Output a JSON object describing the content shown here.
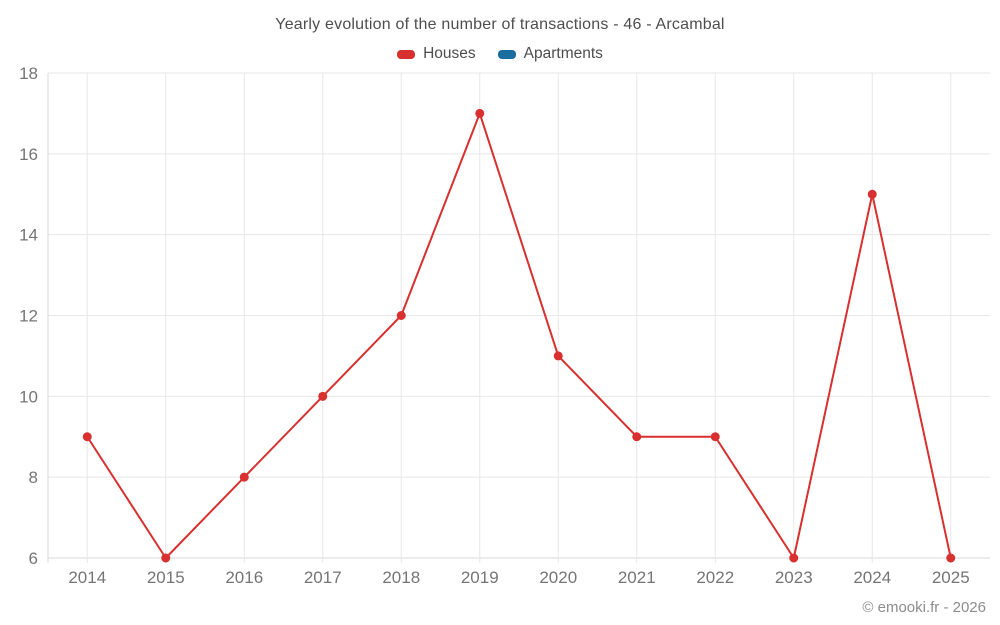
{
  "title": "Yearly evolution of the number of transactions - 46 - Arcambal",
  "legend": [
    {
      "label": "Houses",
      "color": "#d7302e"
    },
    {
      "label": "Apartments",
      "color": "#1a6d9e"
    }
  ],
  "footer": "© emooki.fr - 2026",
  "colors": {
    "grid": "#e7e7e7",
    "axis": "#d9d9d9",
    "tick_label": "#757575"
  },
  "chart_data": {
    "type": "line",
    "title": "Yearly evolution of the number of transactions - 46 - Arcambal",
    "categories": [
      "2014",
      "2015",
      "2016",
      "2017",
      "2018",
      "2019",
      "2020",
      "2021",
      "2022",
      "2023",
      "2024",
      "2025"
    ],
    "series": [
      {
        "name": "Houses",
        "color": "#d7302e",
        "values": [
          9,
          6,
          8,
          10,
          12,
          17,
          11,
          9,
          9,
          6,
          15,
          6
        ]
      },
      {
        "name": "Apartments",
        "color": "#1a6d9e",
        "values": []
      }
    ],
    "xlabel": "",
    "ylabel": "",
    "ylim": [
      6,
      18
    ],
    "yticks": [
      6,
      8,
      10,
      12,
      14,
      16,
      18
    ],
    "grid": true,
    "legend_position": "top"
  }
}
